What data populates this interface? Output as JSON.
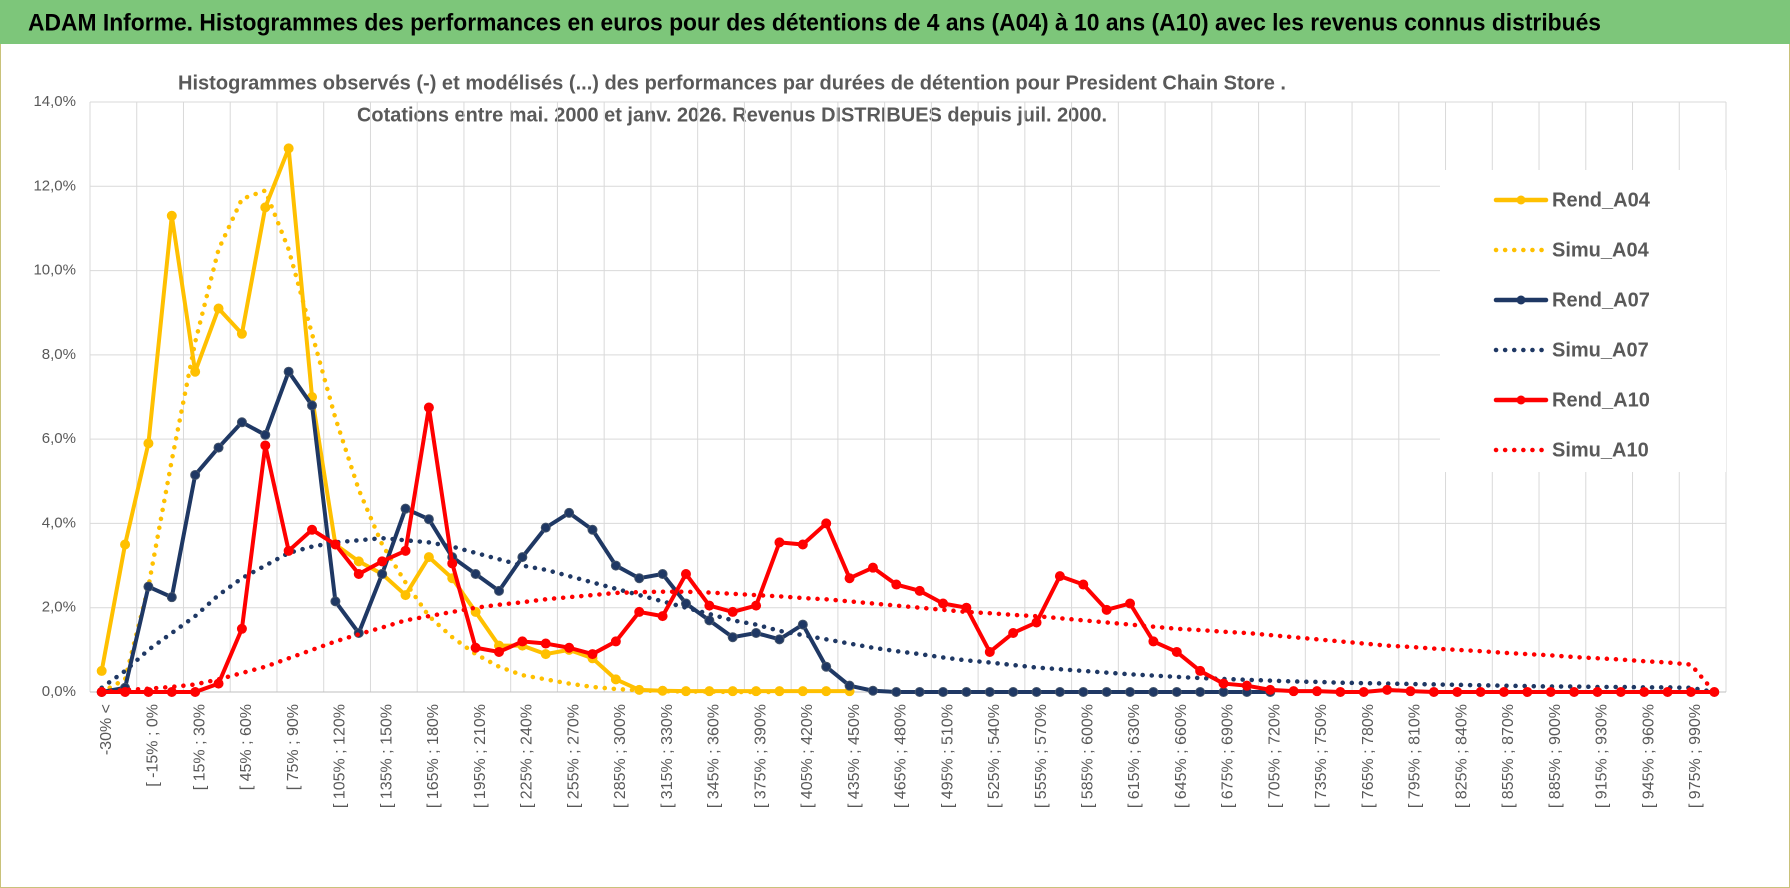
{
  "header": "ADAM Informe. Histogrammes des performances en euros pour des détentions de 4 ans (A04) à 10 ans (A10) avec les revenus connus distribués",
  "chart_data": {
    "type": "line",
    "title": "Histogrammes observés (-) et modélisés (...) des performances par durées de détention pour President Chain Store .",
    "subtitle": "Cotations entre mai. 2000 et janv. 2026.  Revenus DISTRIBUES depuis juil. 2000.",
    "categories": [
      "-30% <",
      null,
      "[ -15% ; 0%",
      null,
      "[ 15% ; 30%",
      null,
      "[ 45% ; 60%",
      null,
      "[ 75% ; 90%",
      null,
      "[ 105% ; 120%",
      null,
      "[ 135% ; 150%",
      null,
      "[ 165% ; 180%",
      null,
      "[ 195% ; 210%",
      null,
      "[ 225% ; 240%",
      null,
      "[ 255% ; 270%",
      null,
      "[ 285% ; 300%",
      null,
      "[ 315% ; 330%",
      null,
      "[ 345% ; 360%",
      null,
      "[ 375% ; 390%",
      null,
      "[ 405% ; 420%",
      null,
      "[ 435% ; 450%",
      null,
      "[ 465% ; 480%",
      null,
      "[ 495% ; 510%",
      null,
      "[ 525% ; 540%",
      null,
      "[ 555% ; 570%",
      null,
      "[ 585% ; 600%",
      null,
      "[ 615% ; 630%",
      null,
      "[ 645% ; 660%",
      null,
      "[ 675% ; 690%",
      null,
      "[ 705% ; 720%",
      null,
      "[ 735% ; 750%",
      null,
      "[ 765% ; 780%",
      null,
      "[ 795% ; 810%",
      null,
      "[ 825% ; 840%",
      null,
      "[ 855% ; 870%",
      null,
      "[ 885% ; 900%",
      null,
      "[ 915% ; 930%",
      null,
      "[ 945% ; 960%",
      null,
      "[ 975% ; 990%",
      null
    ],
    "series": [
      {
        "name": "Rend_A04",
        "color": "#ffc000",
        "line_style": "solid",
        "markers": true,
        "values": [
          0.5,
          3.5,
          5.9,
          11.3,
          7.6,
          9.1,
          8.5,
          11.5,
          12.9,
          7.0,
          3.5,
          3.1,
          2.8,
          2.3,
          3.2,
          2.7,
          1.9,
          1.1,
          1.1,
          0.9,
          1.0,
          0.8,
          0.3,
          0.05,
          0.03,
          0.02,
          0.02,
          0.02,
          0.02,
          0.02,
          0.02,
          0.02,
          0.02,
          null,
          null,
          null,
          null,
          null,
          null,
          null,
          null,
          null,
          null,
          null,
          null,
          null,
          null,
          null,
          null,
          null,
          null,
          null,
          null,
          null,
          null,
          null,
          null,
          null,
          null,
          null,
          null,
          null,
          null,
          null,
          null,
          null,
          null,
          null,
          null,
          null
        ]
      },
      {
        "name": "Simu_A04",
        "color": "#ffc000",
        "line_style": "dotted",
        "markers": false,
        "values": [
          0,
          0.3,
          2.5,
          5.5,
          8.3,
          10.5,
          11.7,
          11.9,
          10.5,
          8.5,
          6.5,
          4.8,
          3.5,
          2.6,
          1.8,
          1.3,
          0.9,
          0.6,
          0.4,
          0.3,
          0.2,
          0.12,
          0.07,
          0.04,
          0.02,
          0.01,
          0.01,
          0,
          0,
          0,
          null,
          null,
          null,
          null,
          null,
          null,
          null,
          null,
          null,
          null,
          null,
          null,
          null,
          null,
          null,
          null,
          null,
          null,
          null,
          null,
          null,
          null,
          null,
          null,
          null,
          null,
          null,
          null,
          null,
          null,
          null,
          null,
          null,
          null,
          null,
          null,
          null,
          null,
          null,
          null
        ]
      },
      {
        "name": "Rend_A07",
        "color": "#1f3864",
        "line_style": "solid",
        "markers": true,
        "values": [
          0,
          0.1,
          2.5,
          2.25,
          5.15,
          5.8,
          6.4,
          6.1,
          7.6,
          6.8,
          2.15,
          1.4,
          2.8,
          4.35,
          4.1,
          3.2,
          2.8,
          2.4,
          3.2,
          3.9,
          4.25,
          3.85,
          3.0,
          2.7,
          2.8,
          2.1,
          1.7,
          1.3,
          1.4,
          1.25,
          1.6,
          0.6,
          0.15,
          0.03,
          0,
          0,
          0,
          0,
          0,
          0,
          0,
          0,
          0,
          0,
          0,
          0,
          0,
          0,
          0,
          0,
          0,
          null,
          null,
          null,
          null,
          null,
          null,
          null,
          null,
          null,
          null,
          null,
          null,
          null,
          null,
          null,
          null,
          null,
          null,
          null
        ]
      },
      {
        "name": "Simu_A07",
        "color": "#1f3864",
        "line_style": "dotted",
        "markers": false,
        "values": [
          0.1,
          0.5,
          1.0,
          1.4,
          1.8,
          2.3,
          2.7,
          3.0,
          3.3,
          3.45,
          3.55,
          3.6,
          3.65,
          3.6,
          3.55,
          3.45,
          3.3,
          3.15,
          3.0,
          2.9,
          2.75,
          2.6,
          2.45,
          2.3,
          2.15,
          2.0,
          1.85,
          1.7,
          1.6,
          1.45,
          1.35,
          1.25,
          1.15,
          1.05,
          0.97,
          0.9,
          0.82,
          0.75,
          0.7,
          0.64,
          0.58,
          0.54,
          0.5,
          0.46,
          0.42,
          0.39,
          0.36,
          0.33,
          0.31,
          0.29,
          0.27,
          0.25,
          0.24,
          0.22,
          0.21,
          0.2,
          0.19,
          0.18,
          0.17,
          0.16,
          0.15,
          0.14,
          0.13,
          0.13,
          0.12,
          0.12,
          0.11,
          0.11,
          0.1,
          0.0
        ]
      },
      {
        "name": "Rend_A10",
        "color": "#ff0000",
        "line_style": "solid",
        "markers": true,
        "values": [
          0,
          0,
          0,
          0,
          0,
          0.2,
          1.5,
          5.85,
          3.35,
          3.85,
          3.5,
          2.8,
          3.1,
          3.35,
          6.75,
          3.05,
          1.05,
          0.95,
          1.2,
          1.15,
          1.05,
          0.9,
          1.2,
          1.9,
          1.8,
          2.8,
          2.05,
          1.9,
          2.05,
          3.55,
          3.5,
          4.0,
          2.7,
          2.95,
          2.55,
          2.4,
          2.1,
          2.0,
          0.95,
          1.4,
          1.65,
          2.75,
          2.55,
          1.95,
          2.1,
          1.2,
          0.95,
          0.5,
          0.2,
          0.15,
          0.05,
          0.02,
          0.02,
          0,
          0,
          0.05,
          0.02,
          0,
          0,
          0,
          0,
          0,
          0,
          0,
          0,
          0,
          0,
          0,
          0,
          0
        ]
      },
      {
        "name": "Simu_A10",
        "color": "#ff0000",
        "line_style": "dotted",
        "markers": false,
        "values": [
          0,
          0.05,
          0.08,
          0.12,
          0.18,
          0.3,
          0.45,
          0.6,
          0.8,
          1.0,
          1.2,
          1.37,
          1.53,
          1.7,
          1.8,
          1.9,
          2.0,
          2.07,
          2.13,
          2.2,
          2.25,
          2.3,
          2.35,
          2.37,
          2.38,
          2.38,
          2.36,
          2.33,
          2.3,
          2.27,
          2.23,
          2.2,
          2.15,
          2.1,
          2.05,
          2.0,
          1.95,
          1.9,
          1.87,
          1.83,
          1.8,
          1.75,
          1.7,
          1.65,
          1.6,
          1.55,
          1.5,
          1.47,
          1.43,
          1.4,
          1.35,
          1.3,
          1.25,
          1.2,
          1.15,
          1.1,
          1.07,
          1.03,
          1.0,
          0.97,
          0.93,
          0.9,
          0.87,
          0.83,
          0.8,
          0.77,
          0.73,
          0.7,
          0.65,
          0.0
        ]
      }
    ],
    "ylim": [
      0,
      14
    ],
    "yticks": [
      {
        "value": 0,
        "label": "0,0%"
      },
      {
        "value": 2,
        "label": "2,0%"
      },
      {
        "value": 4,
        "label": "4,0%"
      },
      {
        "value": 6,
        "label": "6,0%"
      },
      {
        "value": 8,
        "label": "8,0%"
      },
      {
        "value": 10,
        "label": "10,0%"
      },
      {
        "value": 12,
        "label": "12,0%"
      },
      {
        "value": 14,
        "label": "14,0%"
      }
    ],
    "grid": true,
    "legend": "right"
  }
}
